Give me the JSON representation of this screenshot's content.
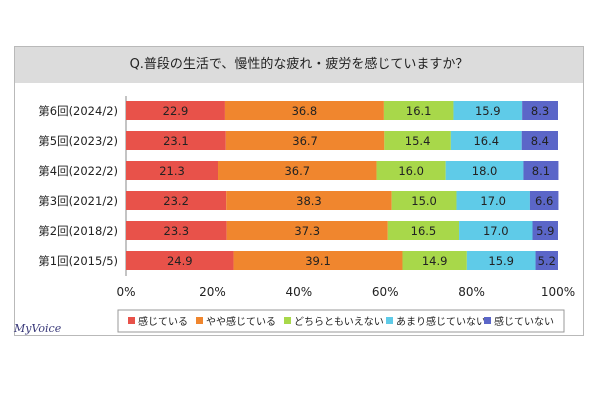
{
  "chart_data": {
    "type": "bar",
    "orientation": "horizontal",
    "stacked": "percent",
    "title": "Q.普段の生活で、慢性的な疲れ・疲労を感じていますか？",
    "categories": [
      "第6回(2024/2)",
      "第5回(2023/2)",
      "第4回(2022/2)",
      "第3回(2021/2)",
      "第2回(2018/2)",
      "第1回(2015/5)"
    ],
    "series": [
      {
        "name": "感じている",
        "color": "#e8524a",
        "values": [
          22.9,
          23.1,
          21.3,
          23.2,
          23.3,
          24.9
        ]
      },
      {
        "name": "やや感じている",
        "color": "#f0862e",
        "values": [
          36.8,
          36.7,
          36.7,
          38.3,
          37.3,
          39.1
        ]
      },
      {
        "name": "どちらともいえない",
        "color": "#a8d84a",
        "values": [
          16.1,
          15.4,
          16.0,
          15.0,
          16.5,
          14.9
        ]
      },
      {
        "name": "あまり感じていない",
        "color": "#5fcbe8",
        "values": [
          15.9,
          16.4,
          18.0,
          17.0,
          17.0,
          15.9
        ]
      },
      {
        "name": "感じていない",
        "color": "#5b66c8",
        "values": [
          8.3,
          8.4,
          8.1,
          6.6,
          5.9,
          5.2
        ]
      }
    ],
    "xlim": [
      0,
      100
    ],
    "xticks": [
      "0%",
      "20%",
      "40%",
      "60%",
      "80%",
      "100%"
    ],
    "legend_position": "bottom",
    "grid": false
  },
  "brand": "MyVoice"
}
